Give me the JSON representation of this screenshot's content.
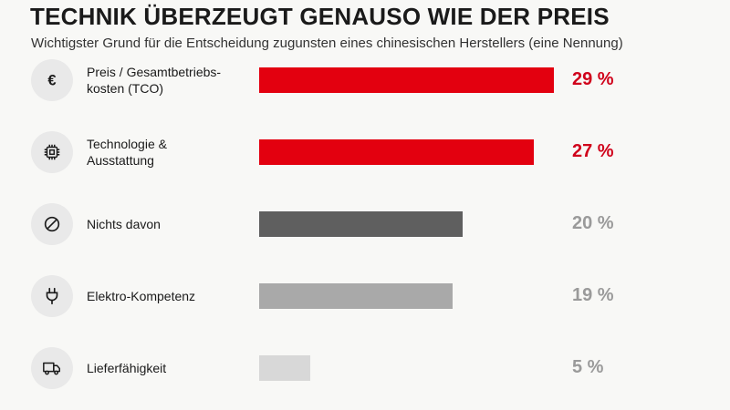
{
  "chart_data": {
    "type": "bar",
    "orientation": "horizontal",
    "title": "TECHNIK ÜBERZEUGT GENAUSO WIE DER PREIS",
    "subtitle": "Wichtigster Grund für die Entscheidung zugunsten eines chinesischen Herstellers (eine Nennung)",
    "categories": [
      "Preis / Gesamtbetriebs-\nkosten (TCO)",
      "Technologie &\nAusstattung",
      "Nichts davon",
      "Elektro-Kompetenz",
      "Lieferfähigkeit"
    ],
    "values": [
      29,
      27,
      20,
      19,
      5
    ],
    "value_labels": [
      "29 %",
      "27 %",
      "20 %",
      "19 %",
      "5 %"
    ],
    "xlim": [
      0,
      29
    ],
    "grid": false,
    "legend": "none"
  },
  "rows": [
    {
      "icon": "euro-icon",
      "bar_color": "#e3000f",
      "value_color": "#d0021b"
    },
    {
      "icon": "chip-icon",
      "bar_color": "#e3000f",
      "value_color": "#d0021b"
    },
    {
      "icon": "prohibited-icon",
      "bar_color": "#5f5f5f",
      "value_color": "#9a9a9a"
    },
    {
      "icon": "plug-icon",
      "bar_color": "#a9a9a9",
      "value_color": "#9a9a9a"
    },
    {
      "icon": "truck-icon",
      "bar_color": "#d8d8d8",
      "value_color": "#9a9a9a"
    }
  ]
}
